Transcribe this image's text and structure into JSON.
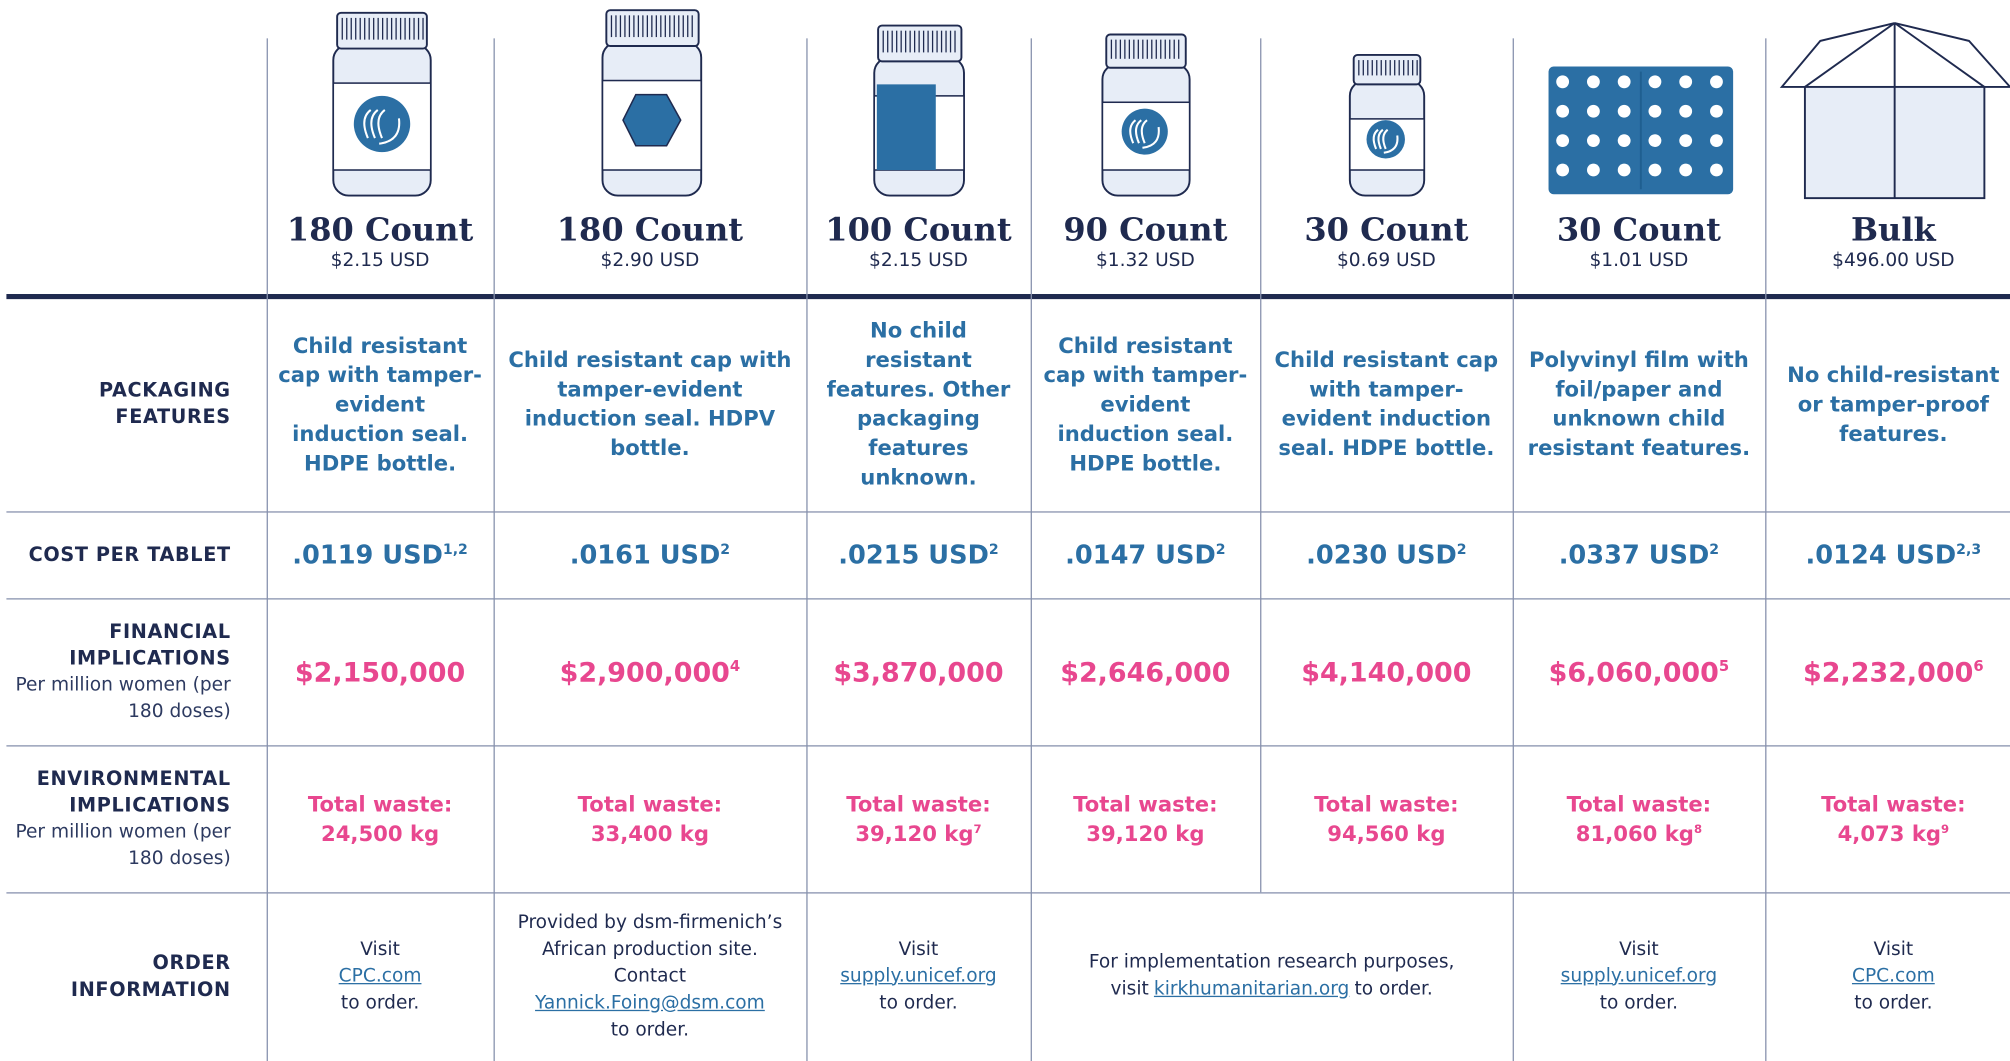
{
  "columns": [
    {
      "title": "180 Count",
      "price": "$2.15 USD",
      "packaging": "Child resistant cap with tamper-evident induction seal. HDPE bottle.",
      "cost": ".0119 USD",
      "cost_note": "1,2",
      "financial": "$2,150,000",
      "waste": "24,500 kg"
    },
    {
      "title": "180 Count",
      "price": "$2.90 USD",
      "packaging": "Child resistant cap with tamper-evident induction seal. HDPV bottle.",
      "cost": ".0161 USD",
      "cost_note": "2",
      "financial": "$2,900,000",
      "financial_note": "4",
      "waste": "33,400 kg"
    },
    {
      "title": "100 Count",
      "price": "$2.15 USD",
      "packaging": "No child resistant features. Other packaging features unknown.",
      "cost": ".0215 USD",
      "cost_note": "2",
      "financial": "$3,870,000",
      "waste": "39,120 kg",
      "waste_note": "7"
    },
    {
      "title": "90 Count",
      "price": "$1.32 USD",
      "packaging": "Child resistant cap with tamper-evident induction seal. HDPE bottle.",
      "cost": ".0147 USD",
      "cost_note": "2",
      "financial": "$2,646,000",
      "waste": "39,120 kg"
    },
    {
      "title": "30 Count",
      "price": "$0.69 USD",
      "packaging": "Child resistant cap with tamper-evident induction seal. HDPE bottle.",
      "cost": ".0230 USD",
      "cost_note": "2",
      "financial": "$4,140,000",
      "waste": "94,560 kg"
    },
    {
      "title": "30 Count",
      "price": "$1.01 USD",
      "packaging": "Polyvinyl film with foil/paper and unknown child resistant features.",
      "cost": ".0337 USD",
      "cost_note": "2",
      "financial": "$6,060,000",
      "financial_note": "5",
      "waste": "81,060 kg",
      "waste_note": "8"
    },
    {
      "title": "Bulk",
      "price": "$496.00 USD",
      "packaging": "No child-resistant or tamper-proof features.",
      "cost": ".0124 USD",
      "cost_note": "2,3",
      "financial": "$2,232,000",
      "financial_note": "6",
      "waste": "4,073 kg",
      "waste_note": "9"
    }
  ],
  "waste_label": "Total waste:",
  "row_labels": {
    "packaging": {
      "title": "PACKAGING FEATURES"
    },
    "cost": {
      "title": "COST PER TABLET"
    },
    "financial": {
      "title": "FINANCIAL IMPLICATIONS",
      "subtitle": "Per million women (per 180 doses)"
    },
    "environmental": {
      "title": "ENVIRONMENTAL IMPLICATIONS",
      "subtitle": "Per million women (per 180 doses)"
    },
    "order": {
      "title": "ORDER INFORMATION"
    }
  },
  "order": [
    {
      "before": "Visit",
      "link": "CPC.com",
      "after": "to order."
    },
    {
      "before": "Provided by dsm-firmenich’s African production site. Contact",
      "link": "Yannick.Foing@dsm.com",
      "after": "to order."
    },
    {
      "before": "Visit",
      "link": "supply.unicef.org",
      "after": "to order."
    },
    {
      "before": "For implementation research purposes, visit",
      "link": "kirkhumanitarian.org",
      "after": "to order."
    },
    {
      "before": "Visit",
      "link": "supply.unicef.org",
      "after": "to order."
    },
    {
      "before": "Visit",
      "link": "CPC.com",
      "after": "to order."
    }
  ]
}
